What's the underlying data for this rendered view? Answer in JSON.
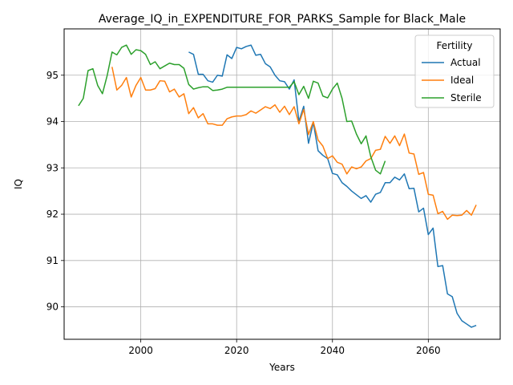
{
  "chart_data": {
    "type": "line",
    "title": "Average_IQ_in_EXPENDITURE_FOR_PARKS_Sample for Black_Male",
    "xlabel": "Years",
    "ylabel": "IQ",
    "xlim": [
      1984,
      2075
    ],
    "ylim": [
      89.3,
      96.0
    ],
    "xticks": [
      2000,
      2020,
      2040,
      2060
    ],
    "yticks": [
      90,
      91,
      92,
      93,
      94,
      95
    ],
    "grid": true,
    "legend": {
      "title": "Fertility",
      "placement": "top-right"
    },
    "series": [
      {
        "name": "Actual",
        "color": "#1f77b4",
        "x": [
          2010,
          2011,
          2012,
          2013,
          2014,
          2015,
          2016,
          2017,
          2018,
          2019,
          2020,
          2021,
          2022,
          2023,
          2024,
          2025,
          2026,
          2027,
          2028,
          2029,
          2030,
          2031,
          2032,
          2033,
          2034,
          2035,
          2036,
          2037,
          2038,
          2039,
          2040,
          2041,
          2042,
          2043,
          2044,
          2045,
          2046,
          2047,
          2048,
          2049,
          2050,
          2051,
          2052,
          2053,
          2054,
          2055,
          2056,
          2057,
          2058,
          2059,
          2060,
          2061,
          2062,
          2063,
          2064,
          2065,
          2066,
          2067,
          2068,
          2069,
          2070
        ],
        "y": [
          95.5,
          95.45,
          95.02,
          95.02,
          94.88,
          94.85,
          95.0,
          94.98,
          95.44,
          95.36,
          95.6,
          95.57,
          95.62,
          95.65,
          95.43,
          95.45,
          95.25,
          95.18,
          95.0,
          94.88,
          94.86,
          94.7,
          94.9,
          94.0,
          94.33,
          93.53,
          93.98,
          93.37,
          93.27,
          93.2,
          92.88,
          92.85,
          92.68,
          92.6,
          92.5,
          92.42,
          92.34,
          92.4,
          92.26,
          92.43,
          92.47,
          92.68,
          92.68,
          92.8,
          92.74,
          92.87,
          92.55,
          92.56,
          92.05,
          92.13,
          91.56,
          91.7,
          90.87,
          90.89,
          90.28,
          90.22,
          89.86,
          89.7,
          89.63,
          89.56,
          89.6
        ]
      },
      {
        "name": "Ideal",
        "color": "#ff7f0e",
        "x": [
          1994,
          1995,
          1996,
          1997,
          1998,
          1999,
          2000,
          2001,
          2002,
          2003,
          2004,
          2005,
          2006,
          2007,
          2008,
          2009,
          2010,
          2011,
          2012,
          2013,
          2014,
          2015,
          2016,
          2017,
          2018,
          2019,
          2020,
          2021,
          2022,
          2023,
          2024,
          2025,
          2026,
          2027,
          2028,
          2029,
          2030,
          2031,
          2032,
          2033,
          2034,
          2035,
          2036,
          2037,
          2038,
          2039,
          2040,
          2041,
          2042,
          2043,
          2044,
          2045,
          2046,
          2047,
          2048,
          2049,
          2050,
          2051,
          2052,
          2053,
          2054,
          2055,
          2056,
          2057,
          2058,
          2059,
          2060,
          2061,
          2062,
          2063,
          2064,
          2065,
          2066,
          2067,
          2068,
          2069,
          2070
        ],
        "y": [
          95.18,
          94.68,
          94.78,
          94.95,
          94.53,
          94.78,
          94.95,
          94.68,
          94.68,
          94.71,
          94.88,
          94.87,
          94.64,
          94.7,
          94.53,
          94.6,
          94.17,
          94.3,
          94.08,
          94.17,
          93.95,
          93.95,
          93.92,
          93.92,
          94.06,
          94.1,
          94.12,
          94.12,
          94.15,
          94.23,
          94.18,
          94.25,
          94.32,
          94.28,
          94.36,
          94.2,
          94.33,
          94.15,
          94.32,
          93.95,
          94.26,
          93.72,
          94.0,
          93.6,
          93.47,
          93.2,
          93.26,
          93.12,
          93.08,
          92.87,
          93.02,
          92.98,
          93.02,
          93.15,
          93.2,
          93.38,
          93.4,
          93.68,
          93.53,
          93.69,
          93.48,
          93.73,
          93.32,
          93.3,
          92.86,
          92.9,
          92.43,
          92.41,
          92.01,
          92.06,
          91.89,
          91.98,
          91.97,
          91.98,
          92.08,
          91.98,
          92.2
        ]
      },
      {
        "name": "Sterile",
        "color": "#2ca02c",
        "x": [
          1987,
          1988,
          1989,
          1990,
          1991,
          1992,
          1993,
          1994,
          1995,
          1996,
          1997,
          1998,
          1999,
          2000,
          2001,
          2002,
          2003,
          2004,
          2005,
          2006,
          2007,
          2008,
          2009,
          2010,
          2011,
          2012,
          2013,
          2014,
          2015,
          2016,
          2017,
          2018,
          2019,
          2020,
          2021,
          2022,
          2023,
          2024,
          2025,
          2026,
          2027,
          2028,
          2029,
          2030,
          2031,
          2032,
          2033,
          2034,
          2035,
          2036,
          2037,
          2038,
          2039,
          2040,
          2041,
          2042,
          2043,
          2044,
          2045,
          2046,
          2047,
          2048,
          2049,
          2050,
          2051
        ],
        "y": [
          94.34,
          94.5,
          95.1,
          95.14,
          94.78,
          94.6,
          95.0,
          95.5,
          95.44,
          95.6,
          95.65,
          95.45,
          95.55,
          95.53,
          95.45,
          95.23,
          95.29,
          95.14,
          95.2,
          95.26,
          95.23,
          95.23,
          95.15,
          94.8,
          94.7,
          94.73,
          94.75,
          94.75,
          94.67,
          94.68,
          94.7,
          94.74,
          94.74,
          94.74,
          94.74,
          94.74,
          94.74,
          94.74,
          94.74,
          94.74,
          94.74,
          94.74,
          94.74,
          94.74,
          94.74,
          94.86,
          94.58,
          94.76,
          94.5,
          94.87,
          94.83,
          94.55,
          94.51,
          94.7,
          94.83,
          94.5,
          94.0,
          94.01,
          93.73,
          93.52,
          93.69,
          93.24,
          92.95,
          92.87,
          93.15
        ]
      }
    ]
  }
}
